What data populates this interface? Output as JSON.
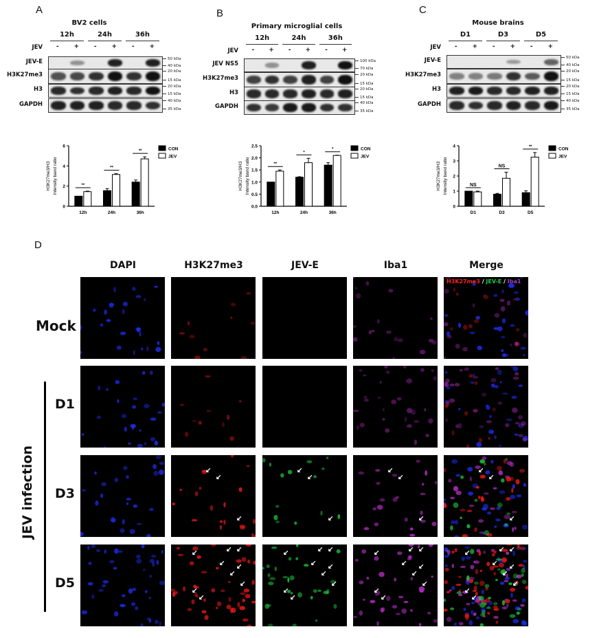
{
  "panels": [
    {
      "letter": "A",
      "title": "BV2 cells",
      "groups": [
        "12h",
        "24h",
        "36h"
      ],
      "jev_label": "JEV",
      "signs": [
        "-",
        "+",
        "-",
        "+",
        "-",
        "+"
      ],
      "rows": [
        {
          "label": "JEV-E",
          "kda": [
            "50 kDa",
            "40 kDa"
          ],
          "bands": [
            0,
            0.2,
            0,
            0.9,
            0,
            0.9
          ]
        },
        {
          "label": "H3K27me3",
          "kda": [
            "20 kDa",
            "15 kDa"
          ],
          "bands": [
            0.6,
            0.65,
            0.8,
            1,
            0.8,
            1
          ]
        },
        {
          "label": "H3",
          "kda": [
            "20 kDa",
            "15 kDa"
          ],
          "bands": [
            0.85,
            0.8,
            0.85,
            0.9,
            0.85,
            1
          ]
        },
        {
          "label": "GAPDH",
          "kda": [
            "40 kDa",
            "35 kDa"
          ],
          "bands": [
            0.9,
            0.9,
            0.9,
            0.85,
            0.85,
            0.8
          ]
        }
      ]
    },
    {
      "letter": "B",
      "title": "Primary microglial cells",
      "groups": [
        "12h",
        "24h",
        "36h"
      ],
      "jev_label": "JEV",
      "signs": [
        "-",
        "+",
        "-",
        "+",
        "-",
        "+"
      ],
      "rows": [
        {
          "label": "JEV NS5",
          "kda": [
            "100 kDa",
            "70 kDa"
          ],
          "bands": [
            0,
            0.2,
            0,
            0.9,
            0,
            1
          ]
        },
        {
          "label": "H3K27me3",
          "kda": [
            "20 kDa",
            "15 kDa"
          ],
          "bands": [
            0.7,
            0.8,
            0.7,
            0.9,
            0.7,
            1
          ]
        },
        {
          "label": "H3",
          "kda": [
            "20 kDa",
            "15 kDa"
          ],
          "bands": [
            0.85,
            0.85,
            0.85,
            0.9,
            0.85,
            0.9
          ]
        },
        {
          "label": "GAPDH",
          "kda": [
            "40 kDa",
            "35 kDa"
          ],
          "bands": [
            0.8,
            0.75,
            0.95,
            0.95,
            0.8,
            0.8
          ]
        }
      ]
    },
    {
      "letter": "C",
      "title": "Mouse brains",
      "groups": [
        "D1",
        "D3",
        "D5"
      ],
      "jev_label": "JEV",
      "signs": [
        "-",
        "+",
        "-",
        "+",
        "-",
        "+"
      ],
      "rows": [
        {
          "label": "JEV-E",
          "kda": [
            "50 kDa",
            "40 kDa"
          ],
          "bands": [
            0,
            0,
            0,
            0.15,
            0,
            0.5
          ]
        },
        {
          "label": "H3K27me3",
          "kda": [
            "20 kDa",
            "15 kDa"
          ],
          "bands": [
            0.3,
            0.3,
            0.35,
            0.8,
            0.55,
            1
          ]
        },
        {
          "label": "H3",
          "kda": [
            "20 kDa",
            "15 kDa"
          ],
          "bands": [
            0.9,
            0.95,
            0.85,
            0.85,
            0.9,
            0.9
          ]
        },
        {
          "label": "GAPDH",
          "kda": [
            "40 kDa",
            "35 kDa"
          ],
          "bands": [
            0.85,
            0.8,
            0.85,
            0.9,
            0.85,
            0.95
          ]
        }
      ]
    }
  ],
  "chart_data": [
    {
      "type": "bar",
      "categories": [
        "12h",
        "24h",
        "36h"
      ],
      "ylabel": "H3K27me3/H3\nIntensity band ratio",
      "ylim": [
        0,
        6
      ],
      "yticks": [
        "0",
        "2",
        "4",
        "6"
      ],
      "series": [
        {
          "name": "CON",
          "color": "#000000",
          "values": [
            1.0,
            1.55,
            2.4
          ],
          "err": [
            0,
            0.2,
            0.2
          ]
        },
        {
          "name": "JEV",
          "color": "#ffffff",
          "values": [
            1.45,
            3.15,
            4.7
          ],
          "err": [
            0.05,
            0.08,
            0.2
          ]
        }
      ],
      "significance": [
        "**",
        "**",
        "**"
      ],
      "legend": "top-right"
    },
    {
      "type": "bar",
      "categories": [
        "12h",
        "24h",
        "36h"
      ],
      "ylabel": "H3K27me3/H3\nIntensity band ratio",
      "ylim": [
        0,
        2.5
      ],
      "yticks": [
        "0.0",
        "0.5",
        "1.0",
        "1.5",
        "2.0",
        "2.5"
      ],
      "series": [
        {
          "name": "CON",
          "color": "#000000",
          "values": [
            1.0,
            1.2,
            1.7
          ],
          "err": [
            0,
            0.02,
            0.1
          ]
        },
        {
          "name": "JEV",
          "color": "#ffffff",
          "values": [
            1.45,
            1.8,
            2.1
          ],
          "err": [
            0.05,
            0.18,
            0.01
          ]
        }
      ],
      "significance": [
        "**",
        "*",
        "*"
      ],
      "legend": "top-right"
    },
    {
      "type": "bar",
      "categories": [
        "D1",
        "D3",
        "D5"
      ],
      "ylabel": "H3K27me3/H3\nIntensity band ratio",
      "ylim": [
        0,
        4
      ],
      "yticks": [
        "0",
        "1",
        "2",
        "3",
        "4"
      ],
      "series": [
        {
          "name": "CON",
          "color": "#000000",
          "values": [
            1.0,
            0.8,
            0.9
          ],
          "err": [
            0,
            0.05,
            0.12
          ]
        },
        {
          "name": "JEV",
          "color": "#ffffff",
          "values": [
            0.95,
            1.85,
            3.25
          ],
          "err": [
            0.05,
            0.4,
            0.3
          ]
        }
      ],
      "significance": [
        "NS",
        "NS",
        "**"
      ],
      "legend": "top-right"
    }
  ],
  "section_d": {
    "letter": "D",
    "columns": [
      "DAPI",
      "H3K27me3",
      "JEV-E",
      "Iba1",
      "Merge"
    ],
    "rows": [
      "Mock",
      "D1",
      "D3",
      "D5"
    ],
    "group_label": "JEV infection",
    "merge_legend": [
      {
        "text": "H3K27me3",
        "color": "#ff2020"
      },
      {
        "text": " / ",
        "color": "#ffffff"
      },
      {
        "text": "JEV-E",
        "color": "#22cc44"
      },
      {
        "text": " / ",
        "color": "#ffffff"
      },
      {
        "text": "Iba1",
        "color": "#a040c0"
      }
    ],
    "channel_colors": {
      "DAPI": "#2030ff",
      "H3K27me3": "#ff1a1a",
      "JEV-E": "#20d040",
      "Iba1": "#c030d0"
    }
  }
}
